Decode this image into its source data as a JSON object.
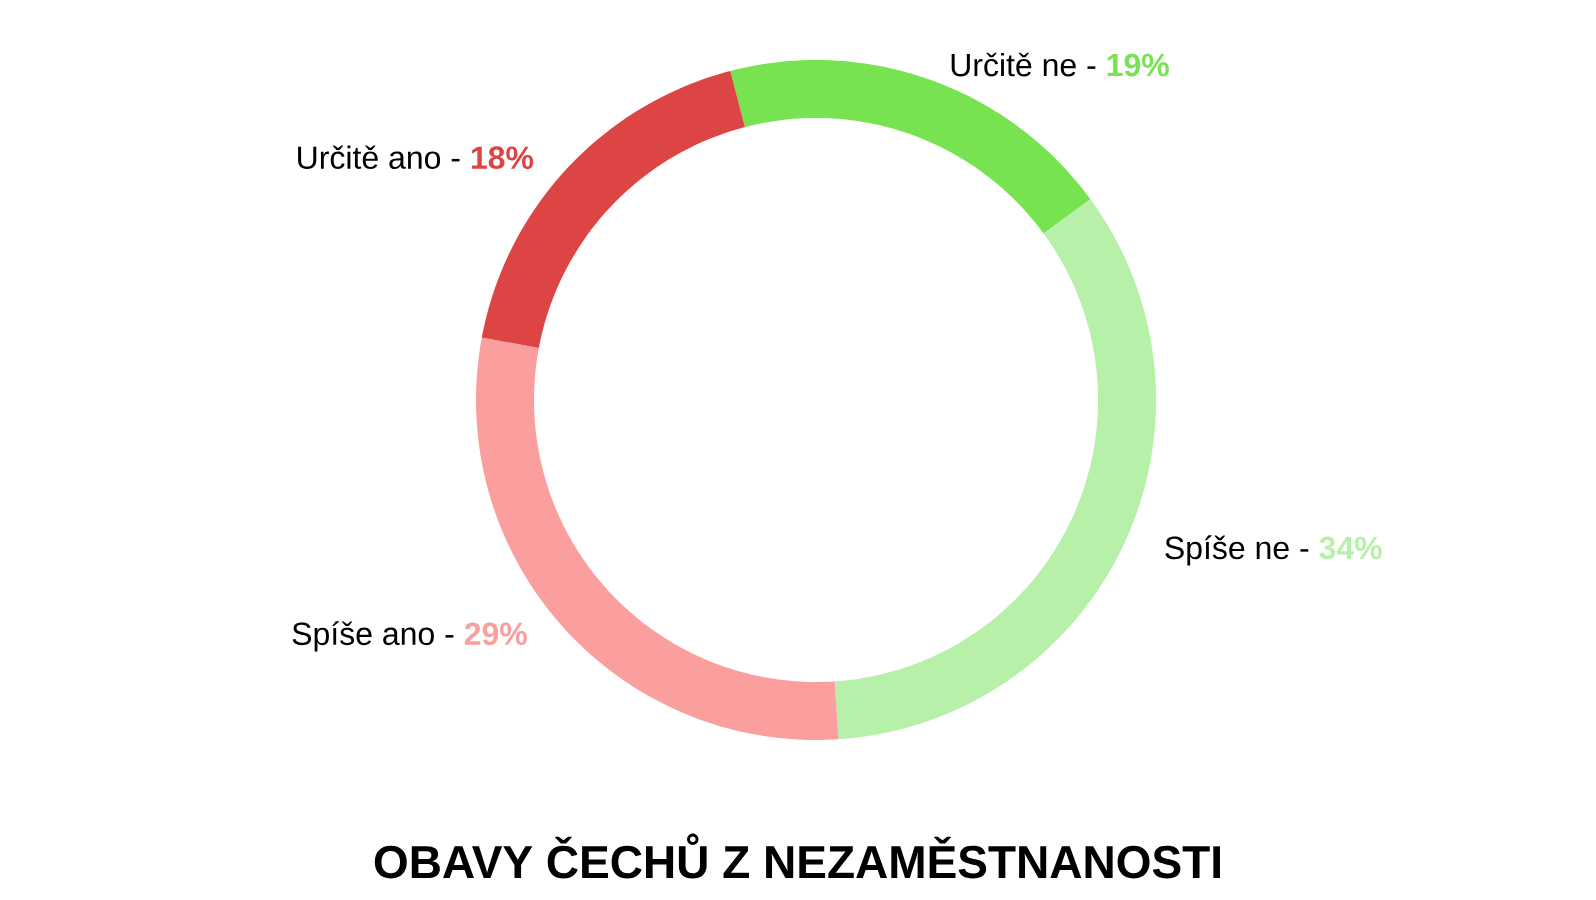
{
  "chart_data": {
    "type": "donut",
    "title": "OBAVY ČECHŮ Z NEZAMĚSTNANOSTI",
    "categories": [
      "Určitě ne -",
      "Spíše ne -",
      "Spíše ano -",
      "Určitě ano -"
    ],
    "values": [
      19,
      34,
      29,
      18
    ],
    "value_labels": [
      "19%",
      "34%",
      "29%",
      "18%"
    ],
    "colors": [
      "#77e350",
      "#b7f0a8",
      "#fb9e9e",
      "#dd4444"
    ]
  }
}
